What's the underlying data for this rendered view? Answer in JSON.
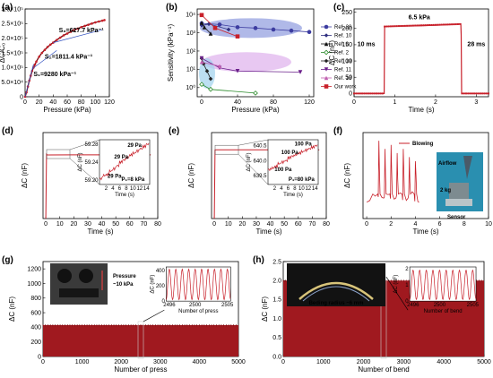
{
  "colors": {
    "red": "#c8202a",
    "dark_red": "#a0191f",
    "blue_fill": "#6f7fd6",
    "purple_fill": "#d59be8",
    "teal_fill": "#9fd1ec",
    "grid_dash": "#999999"
  },
  "chart_data": [
    {
      "id": "a",
      "letter": "(a)",
      "type": "line",
      "xlabel": "Pressure (kPa)",
      "ylabel": "ΔC/C₀",
      "xlim": [
        0,
        120
      ],
      "ylim": [
        0,
        300000
      ],
      "xticks": [
        0,
        20,
        40,
        60,
        80,
        100,
        120
      ],
      "yticks": [
        0,
        50000,
        100000,
        150000,
        200000,
        250000,
        300000
      ],
      "ytick_labels": [
        "0",
        "5.0×10⁴",
        "1.0×10⁵",
        "1.5×10⁵",
        "2.0×10⁵",
        "2.5×10⁵",
        "3.0×10⁵"
      ],
      "x": [
        0,
        2,
        4,
        6,
        8,
        10,
        12,
        14,
        16,
        20,
        24,
        28,
        32,
        36,
        40,
        45,
        50,
        55,
        60,
        65,
        70,
        75,
        80,
        85,
        90,
        95,
        100,
        105,
        110,
        113
      ],
      "y": [
        0,
        15000,
        35000,
        55000,
        72000,
        88000,
        100000,
        110000,
        120000,
        137000,
        150000,
        160000,
        170000,
        178000,
        185000,
        194000,
        202000,
        210000,
        216000,
        222000,
        228000,
        233000,
        238000,
        242000,
        246000,
        250000,
        254000,
        257000,
        260000,
        262000
      ],
      "fits": [
        {
          "x": [
            0,
            12
          ],
          "y": [
            0,
            111000
          ]
        },
        {
          "x": [
            10,
            45
          ],
          "y": [
            95000,
            158000
          ]
        },
        {
          "x": [
            40,
            110
          ],
          "y": [
            185000,
            229000
          ]
        }
      ],
      "annotations": [
        "S₁=9280 kPa⁻¹",
        "S₂=1811.4 kPa⁻¹",
        "S₃=627.7 kPa⁻¹"
      ]
    },
    {
      "id": "b",
      "letter": "(b)",
      "type": "scatter",
      "xlabel": "Pressure (kPa)",
      "ylabel": "Sensitivity (kPa⁻¹)",
      "xlim": [
        -5,
        125
      ],
      "log_y": true,
      "ylim_exp": [
        -0.5,
        4.3
      ],
      "xticks": [
        0,
        40,
        80,
        120
      ],
      "yticks_exp": [
        0,
        1,
        2,
        3,
        4
      ],
      "ytick_labels": [
        "10⁰",
        "10¹",
        "10²",
        "10³",
        "10⁴"
      ],
      "series": [
        {
          "name": "Ref. 20",
          "color": "#3c3ca0",
          "marker": "circle",
          "x": [
            0,
            20,
            40,
            60,
            80,
            100,
            120
          ],
          "y": [
            3300,
            2800,
            2000,
            1800,
            1500,
            1300,
            1100
          ]
        },
        {
          "name": "Ref. 10",
          "color": "#2f2f80",
          "marker": "diamond",
          "x": [
            0,
            8,
            30
          ],
          "y": [
            2500,
            3000,
            1500
          ]
        },
        {
          "name": "Ref. 8",
          "color": "#111111",
          "marker": "triangle-up",
          "x": [
            0,
            3,
            10
          ],
          "y": [
            3500,
            2000,
            900
          ]
        },
        {
          "name": "Ref. 2",
          "color": "#2a8a2a",
          "marker": "diamond-open",
          "x": [
            0,
            10,
            60
          ],
          "y": [
            1.5,
            0.8,
            0.5
          ]
        },
        {
          "name": "Ref. 19",
          "color": "#222222",
          "marker": "diamond",
          "x": [
            0,
            2,
            6,
            10
          ],
          "y": [
            40,
            20,
            8,
            3
          ]
        },
        {
          "name": "Ref. 11",
          "color": "#6a1f8a",
          "marker": "triangle-down",
          "x": [
            0,
            20,
            40,
            110
          ],
          "y": [
            40,
            12,
            8,
            7
          ]
        },
        {
          "name": "Ref. 18",
          "color": "#c060b0",
          "marker": "triangle-up",
          "x": [
            0,
            20
          ],
          "y": [
            25,
            15
          ]
        },
        {
          "name": "Our work",
          "color": "#c8202a",
          "marker": "square",
          "x": [
            0,
            15,
            40
          ],
          "y": [
            9280,
            1811,
            628
          ]
        }
      ],
      "ellipses": [
        "blue",
        "purple",
        "teal"
      ]
    },
    {
      "id": "c",
      "letter": "(c)",
      "type": "line",
      "xlabel": "Time (s)",
      "ylabel": "ΔC (nF)",
      "xlim": [
        0,
        3.3
      ],
      "ylim": [
        -10,
        260
      ],
      "xticks": [
        0,
        1,
        2,
        3
      ],
      "yticks": [
        0,
        50,
        100,
        150,
        200,
        250
      ],
      "x": [
        0,
        0.74,
        0.75,
        1.0,
        1.5,
        2.0,
        2.5,
        2.62,
        2.63,
        2.64,
        3.3
      ],
      "y": [
        0,
        0,
        206,
        207,
        208,
        210,
        213,
        214,
        180,
        0,
        0
      ],
      "annotations": [
        "10 ms",
        "6.5 kPa",
        "28 ms"
      ]
    },
    {
      "id": "d",
      "letter": "(d)",
      "type": "line",
      "xlabel": "Time (s)",
      "ylabel": "ΔC (nF)",
      "xlim": [
        -2,
        80
      ],
      "ylim": [
        0,
        80
      ],
      "xticks": [
        0,
        10,
        20,
        30,
        40,
        50,
        60,
        70,
        80
      ],
      "x": [
        0,
        0.5,
        1,
        20,
        40,
        60,
        75
      ],
      "y": [
        0,
        60,
        59.2,
        59.22,
        59.24,
        59.26,
        59.27
      ],
      "inset": {
        "xlabel": "Time (s)",
        "ylabel": "ΔC (nF)",
        "xlim": [
          0,
          15
        ],
        "ylim": [
          59.19,
          59.29
        ],
        "xticks": [
          2,
          4,
          6,
          8,
          10,
          12,
          14
        ],
        "yticks": [
          59.2,
          59.24,
          59.28
        ],
        "ytick_labels": [
          "59.20",
          "59.24",
          "59.28"
        ],
        "x": [
          0,
          1,
          2,
          3,
          4,
          5,
          6,
          7,
          8,
          9,
          10,
          11,
          12,
          13,
          14
        ],
        "y": [
          59.203,
          59.21,
          59.212,
          59.22,
          59.225,
          59.232,
          59.24,
          59.245,
          59.25,
          59.256,
          59.26,
          59.265,
          59.27,
          59.275,
          59.28
        ],
        "annotations": [
          "29 Pa",
          "29 Pa",
          "29 Pa",
          "P₁=8 kPa"
        ]
      }
    },
    {
      "id": "e",
      "letter": "(e)",
      "type": "line",
      "xlabel": "Time (s)",
      "ylabel": "ΔC (nF)",
      "xlim": [
        -2,
        80
      ],
      "ylim": [
        0,
        800
      ],
      "xticks": [
        0,
        10,
        20,
        30,
        40,
        50,
        60,
        70,
        80
      ],
      "x": [
        0,
        0.5,
        1,
        20,
        40,
        60,
        75
      ],
      "y": [
        0,
        640,
        639.8,
        639.9,
        640,
        640.1,
        640.2
      ],
      "inset": {
        "xlabel": "Time (s)",
        "ylabel": "ΔC (nF)",
        "xlim": [
          0,
          15
        ],
        "ylim": [
          639.2,
          640.7
        ],
        "xticks": [
          2,
          4,
          6,
          8,
          10,
          12,
          14
        ],
        "yticks": [
          639.5,
          640.0,
          640.5
        ],
        "ytick_labels": [
          "639.5",
          "640.0",
          "640.5"
        ],
        "x": [
          0,
          1,
          2,
          3,
          4,
          5,
          6,
          7,
          8,
          9,
          10,
          11,
          12,
          13,
          14
        ],
        "y": [
          639.7,
          639.75,
          639.8,
          639.9,
          639.95,
          640.0,
          640.1,
          640.15,
          640.2,
          640.25,
          640.3,
          640.35,
          640.4,
          640.45,
          640.5
        ],
        "annotations": [
          "100 Pa",
          "100 Pa",
          "100 Pa",
          "P₁=80 kPa"
        ]
      }
    },
    {
      "id": "f",
      "letter": "(f)",
      "type": "line",
      "xlabel": "Time (s)",
      "ylabel": "ΔC (nF)",
      "xlim": [
        -0.3,
        10
      ],
      "xticks": [
        0,
        2,
        4,
        6,
        8,
        10
      ],
      "x": [
        0,
        0.5,
        0.9,
        1.0,
        1.1,
        1.4,
        1.5,
        1.6,
        1.9,
        2.0,
        2.1,
        2.4,
        2.5,
        2.6,
        2.9,
        3.0,
        3.1,
        3.4,
        3.5,
        3.6,
        3.9,
        4.0,
        4.1,
        4.3
      ],
      "y": [
        0.2,
        0.3,
        0.3,
        0.95,
        0.3,
        0.25,
        0.85,
        0.3,
        0.3,
        0.9,
        0.3,
        0.25,
        0.8,
        0.3,
        0.3,
        0.85,
        0.3,
        0.25,
        0.75,
        0.3,
        0.3,
        0.7,
        0.3,
        0.2
      ],
      "legend": "Blowing",
      "photo_labels": [
        "Airflow",
        "2 kg",
        "Sensor"
      ]
    },
    {
      "id": "g",
      "letter": "(g)",
      "type": "area",
      "xlabel": "Number of press",
      "ylabel": "ΔC (nF)",
      "xlim": [
        0,
        5000
      ],
      "ylim": [
        0,
        1300
      ],
      "xticks": [
        0,
        1000,
        2000,
        3000,
        4000,
        5000
      ],
      "yticks": [
        0,
        200,
        400,
        600,
        800,
        1000,
        1200
      ],
      "band": [
        0,
        430
      ],
      "photo_labels": [
        "Pressure",
        "~10 kPa"
      ],
      "inset": {
        "xlabel": "Number of press",
        "ylabel": "ΔC (nF)",
        "xlim": [
          2495.5,
          2505.5
        ],
        "ylim": [
          0,
          450
        ],
        "xticks": [
          2496,
          2500,
          2505
        ],
        "yticks": [
          0,
          200,
          400
        ],
        "cycles": 10,
        "min": 20,
        "max": 420
      }
    },
    {
      "id": "h",
      "letter": "(h)",
      "type": "area",
      "xlabel": "Number of bend",
      "ylabel": "ΔC (nF)",
      "xlim": [
        0,
        5000
      ],
      "ylim": [
        0,
        2.5
      ],
      "xticks": [
        0,
        1000,
        2000,
        3000,
        4000,
        5000
      ],
      "yticks": [
        0,
        0.5,
        1.0,
        1.5,
        2.0,
        2.5
      ],
      "ytick_labels": [
        "0.0",
        "0.5",
        "1.0",
        "1.5",
        "2.0",
        "2.5"
      ],
      "band": [
        0,
        2.0
      ],
      "photo_labels": [
        "Beding radius ~6 mm"
      ],
      "inset": {
        "xlabel": "Number of bend",
        "ylabel": "ΔC (nF)",
        "xlim": [
          2495.5,
          2505.5
        ],
        "ylim": [
          0,
          2.1
        ],
        "xticks": [
          2496,
          2500,
          2505
        ],
        "yticks": [
          0,
          1,
          2
        ],
        "cycles": 10,
        "min": 0.1,
        "max": 1.9
      }
    }
  ]
}
